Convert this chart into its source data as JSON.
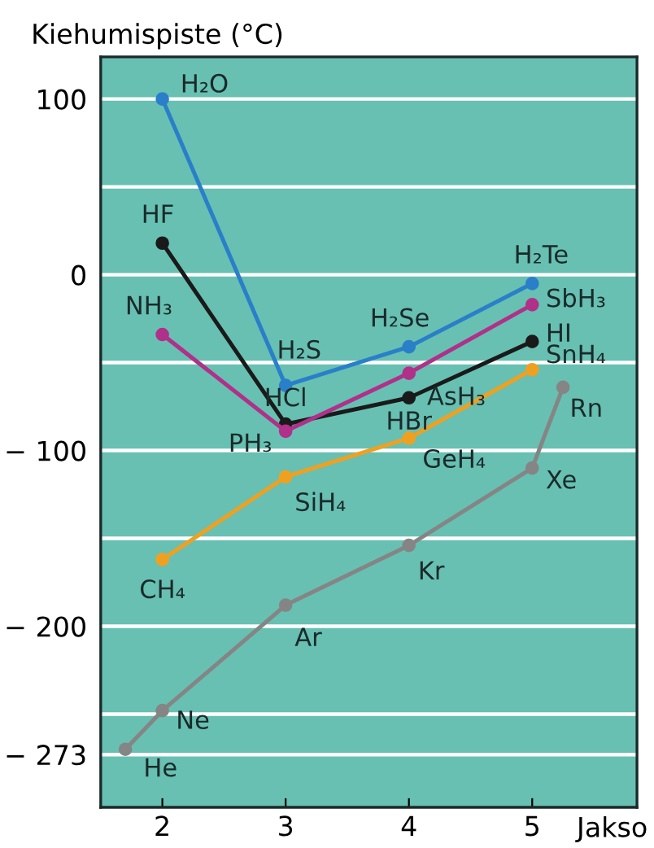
{
  "chart_data": {
    "type": "line",
    "ylabel": "Kiehumispiste (°C)",
    "xlabel": "Jakso",
    "x": [
      2,
      3,
      4,
      5
    ],
    "series": [
      {
        "color": "#2a7fc9",
        "values": [
          100,
          -63,
          -41,
          -5
        ]
      },
      {
        "color": "#1a1a1a",
        "values": [
          18,
          -85,
          -70,
          -38
        ]
      },
      {
        "color": "#b0308a",
        "values": [
          -34,
          -89,
          -56,
          -17
        ]
      },
      {
        "color": "#f0a020",
        "values": [
          -162,
          -115,
          -93,
          -54
        ]
      },
      {
        "color": "#858585",
        "x": [
          1.7,
          2,
          3,
          4,
          5,
          5.25
        ],
        "values": [
          -270,
          -248,
          -188,
          -154,
          -110,
          -64
        ]
      }
    ],
    "xlim": [
      1.5,
      5.85
    ],
    "ylim": [
      -303,
      124
    ],
    "xticks": [
      2,
      3,
      4,
      5
    ],
    "yticks": [
      100,
      {
        "value": 50,
        "label": null
      },
      0,
      {
        "value": -50,
        "label": null
      },
      {
        "value": -100,
        "label": "− 100"
      },
      {
        "value": -150,
        "label": null
      },
      {
        "value": -200,
        "label": "− 200"
      },
      {
        "value": -250,
        "label": null
      },
      {
        "value": -273,
        "label": "− 273"
      }
    ],
    "grid": "y",
    "marker": "circle",
    "line_style": "solid",
    "legend": false,
    "annotations": [
      {
        "text": "H₂O",
        "x": 2,
        "y": 100
      },
      {
        "text": "H₂S",
        "x": 3,
        "y": -63
      },
      {
        "text": "H₂Se",
        "x": 4,
        "y": -41
      },
      {
        "text": "H₂Te",
        "x": 5,
        "y": -5
      },
      {
        "text": "HF",
        "x": 2,
        "y": 18
      },
      {
        "text": "HCl",
        "x": 3,
        "y": -85
      },
      {
        "text": "HBr",
        "x": 4,
        "y": -70
      },
      {
        "text": "HI",
        "x": 5,
        "y": -38
      },
      {
        "text": "NH₃",
        "x": 2,
        "y": -34
      },
      {
        "text": "PH₃",
        "x": 3,
        "y": -89
      },
      {
        "text": "AsH₃",
        "x": 4,
        "y": -56
      },
      {
        "text": "SbH₃",
        "x": 5,
        "y": -17
      },
      {
        "text": "CH₄",
        "x": 2,
        "y": -162
      },
      {
        "text": "SiH₄",
        "x": 3,
        "y": -115
      },
      {
        "text": "GeH₄",
        "x": 4,
        "y": -93
      },
      {
        "text": "SnH₄",
        "x": 5,
        "y": -54
      },
      {
        "text": "He",
        "x": 1.7,
        "y": -270
      },
      {
        "text": "Ne",
        "x": 2,
        "y": -248
      },
      {
        "text": "Ar",
        "x": 3,
        "y": -188
      },
      {
        "text": "Kr",
        "x": 4,
        "y": -154
      },
      {
        "text": "Xe",
        "x": 5,
        "y": -110
      },
      {
        "text": "Rn",
        "x": 5.25,
        "y": -64
      }
    ]
  }
}
